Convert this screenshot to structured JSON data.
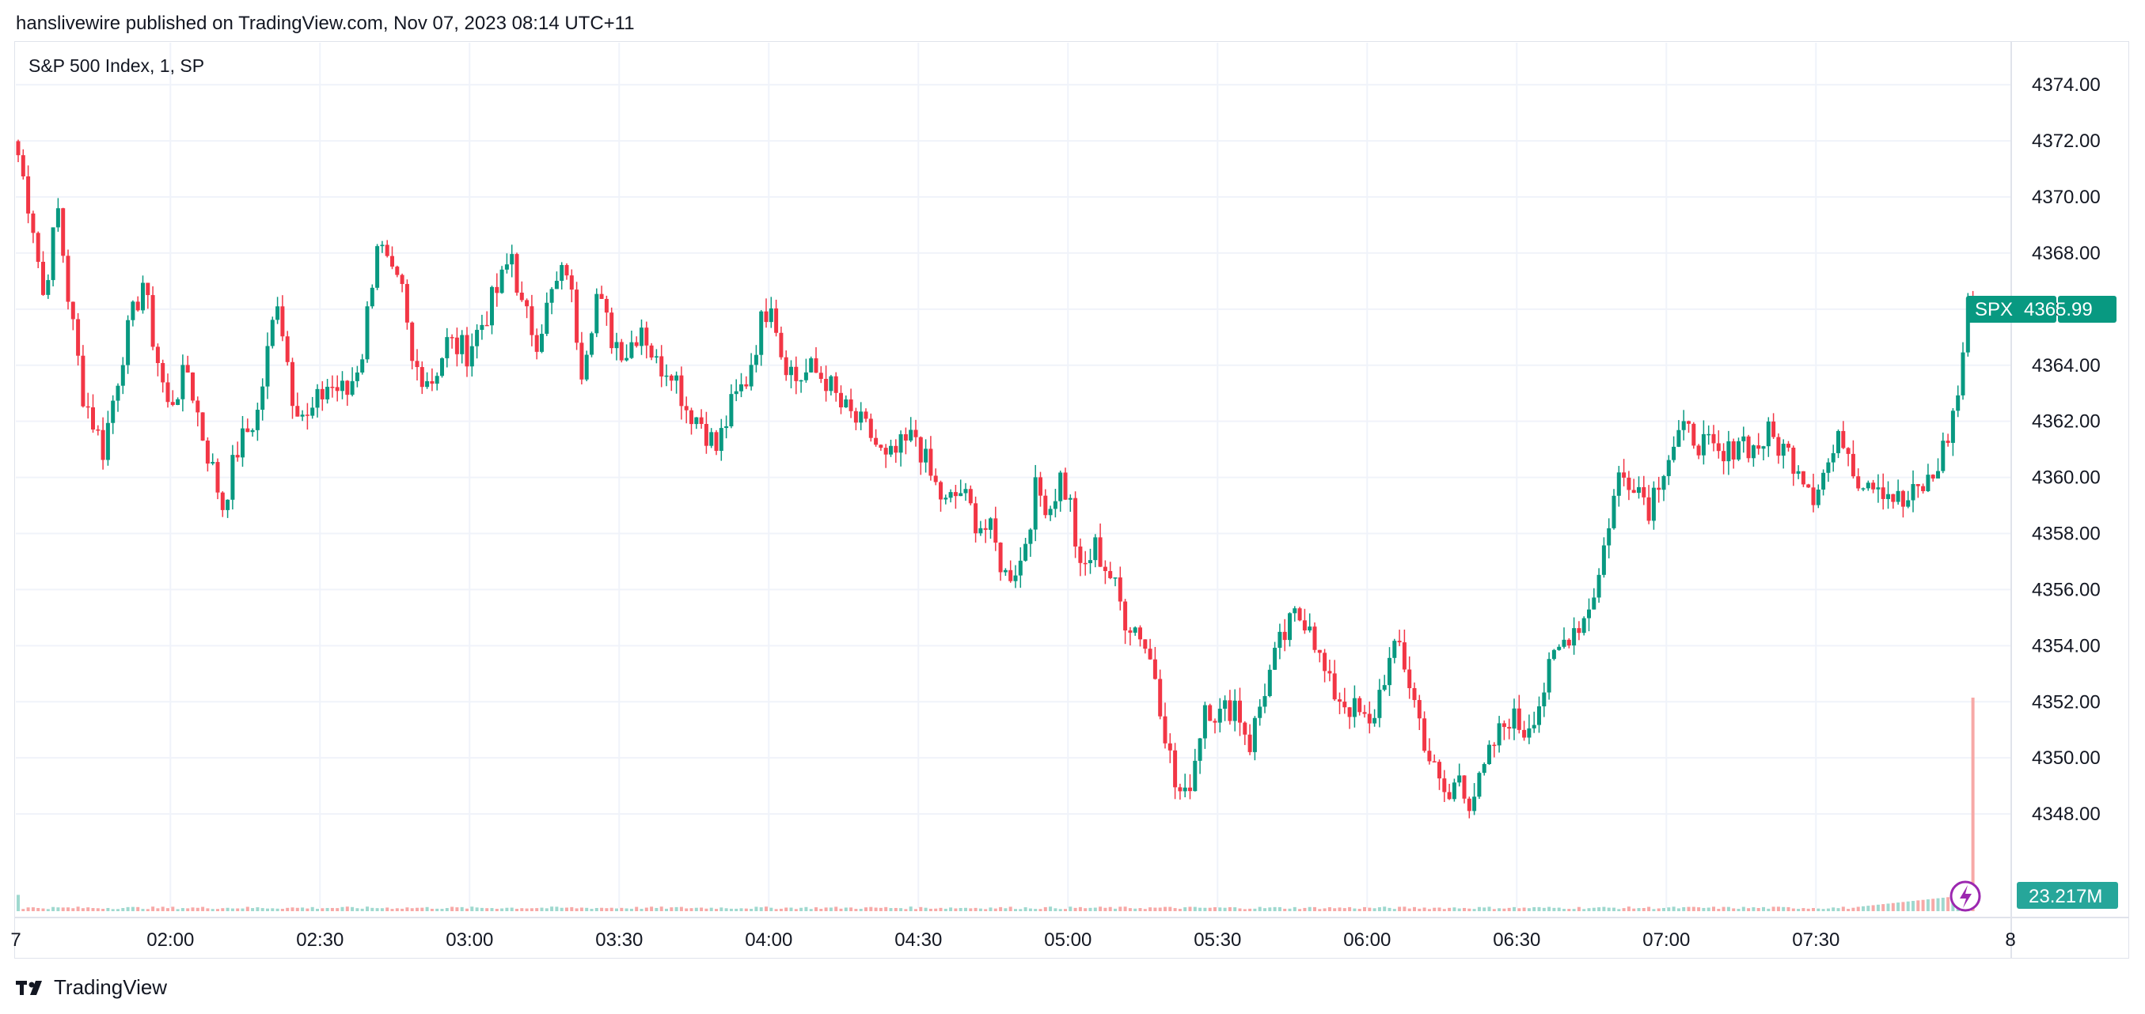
{
  "header": {
    "published": "hanslivewire published on TradingView.com, Nov 07, 2023 08:14 UTC+11"
  },
  "symbol_title": "S&P 500 Index, 1, SP",
  "footer": {
    "brand": "TradingView"
  },
  "price_label": {
    "symbol": "SPX",
    "value": "4365.99"
  },
  "volume_label": {
    "value": "23.217M"
  },
  "colors": {
    "up": "#089981",
    "down": "#f23645",
    "grid": "#f0f3fa",
    "tag": "#089981",
    "lightning": "#9c27b0"
  },
  "icons": {
    "lightning": "lightning-icon",
    "logo": "tradingview-logo-icon"
  },
  "chart_data": {
    "type": "candlestick",
    "title": "S&P 500 Index, 1, SP",
    "interval": "1 minute",
    "ylim": [
      4346.0,
      4375.5
    ],
    "y_ticks": [
      "4374.00",
      "4372.00",
      "4370.00",
      "4368.00",
      "4366.00",
      "4364.00",
      "4362.00",
      "4360.00",
      "4358.00",
      "4356.00",
      "4354.00",
      "4352.00",
      "4350.00",
      "4348.00"
    ],
    "x_ticks": [
      {
        "label": "7",
        "minute": -1
      },
      {
        "label": "02:00",
        "minute": 30
      },
      {
        "label": "02:30",
        "minute": 60
      },
      {
        "label": "03:00",
        "minute": 90
      },
      {
        "label": "03:30",
        "minute": 120
      },
      {
        "label": "04:00",
        "minute": 150
      },
      {
        "label": "04:30",
        "minute": 180
      },
      {
        "label": "05:00",
        "minute": 210
      },
      {
        "label": "05:30",
        "minute": 240
      },
      {
        "label": "06:00",
        "minute": 270
      },
      {
        "label": "06:30",
        "minute": 300
      },
      {
        "label": "07:00",
        "minute": 330
      },
      {
        "label": "07:30",
        "minute": 360
      },
      {
        "label": "8",
        "minute": 399
      }
    ],
    "x_start": "01:30",
    "grid": true,
    "last_price": 4365.99,
    "last_volume": "23.217M",
    "close_path": [
      [
        0,
        4371.5
      ],
      [
        3,
        4369.0
      ],
      [
        5,
        4366.5
      ],
      [
        8,
        4369.5
      ],
      [
        10,
        4366.5
      ],
      [
        13,
        4363.0
      ],
      [
        17,
        4361.0
      ],
      [
        21,
        4364.5
      ],
      [
        25,
        4367.0
      ],
      [
        27,
        4365.0
      ],
      [
        30,
        4362.5
      ],
      [
        34,
        4363.8
      ],
      [
        37,
        4361.5
      ],
      [
        41,
        4359.0
      ],
      [
        44,
        4361.0
      ],
      [
        48,
        4362.3
      ],
      [
        52,
        4366.5
      ],
      [
        55,
        4363.0
      ],
      [
        58,
        4362.0
      ],
      [
        62,
        4363.3
      ],
      [
        66,
        4363.0
      ],
      [
        69,
        4364.5
      ],
      [
        72,
        4368.5
      ],
      [
        75,
        4367.0
      ],
      [
        77,
        4366.5
      ],
      [
        79,
        4364.0
      ],
      [
        83,
        4363.5
      ],
      [
        86,
        4364.8
      ],
      [
        90,
        4364.5
      ],
      [
        93,
        4365.5
      ],
      [
        97,
        4367.0
      ],
      [
        99,
        4368.0
      ],
      [
        101,
        4366.0
      ],
      [
        104,
        4365.0
      ],
      [
        107,
        4366.5
      ],
      [
        110,
        4367.5
      ],
      [
        113,
        4364.0
      ],
      [
        116,
        4366.5
      ],
      [
        119,
        4365.0
      ],
      [
        122,
        4364.5
      ],
      [
        125,
        4365.5
      ],
      [
        128,
        4364.0
      ],
      [
        131,
        4364.0
      ],
      [
        134,
        4362.5
      ],
      [
        137,
        4362.0
      ],
      [
        140,
        4361.0
      ],
      [
        143,
        4362.5
      ],
      [
        146,
        4363.5
      ],
      [
        149,
        4365.5
      ],
      [
        151,
        4366.5
      ],
      [
        153,
        4364.5
      ],
      [
        156,
        4363.5
      ],
      [
        159,
        4363.8
      ],
      [
        162,
        4363.5
      ],
      [
        165,
        4362.5
      ],
      [
        168,
        4362.0
      ],
      [
        171,
        4361.5
      ],
      [
        174,
        4360.5
      ],
      [
        177,
        4361.0
      ],
      [
        180,
        4361.5
      ],
      [
        183,
        4360.0
      ],
      [
        186,
        4359.0
      ],
      [
        189,
        4359.5
      ],
      [
        192,
        4358.5
      ],
      [
        195,
        4358.0
      ],
      [
        198,
        4356.5
      ],
      [
        201,
        4357.0
      ],
      [
        204,
        4359.5
      ],
      [
        207,
        4359.0
      ],
      [
        209,
        4360.0
      ],
      [
        211,
        4359.0
      ],
      [
        213,
        4356.5
      ],
      [
        216,
        4357.5
      ],
      [
        219,
        4356.5
      ],
      [
        222,
        4355.0
      ],
      [
        225,
        4354.5
      ],
      [
        228,
        4353.0
      ],
      [
        230,
        4351.0
      ],
      [
        232,
        4349.0
      ],
      [
        234,
        4348.5
      ],
      [
        236,
        4350.0
      ],
      [
        238,
        4352.0
      ],
      [
        241,
        4351.5
      ],
      [
        244,
        4352.0
      ],
      [
        247,
        4350.5
      ],
      [
        250,
        4352.5
      ],
      [
        253,
        4354.0
      ],
      [
        256,
        4355.0
      ],
      [
        259,
        4355.0
      ],
      [
        261,
        4353.5
      ],
      [
        263,
        4352.5
      ],
      [
        266,
        4352.0
      ],
      [
        269,
        4351.5
      ],
      [
        271,
        4351.0
      ],
      [
        274,
        4353.0
      ],
      [
        277,
        4354.0
      ],
      [
        280,
        4352.0
      ],
      [
        283,
        4350.0
      ],
      [
        285,
        4349.0
      ],
      [
        287,
        4348.5
      ],
      [
        289,
        4349.5
      ],
      [
        291,
        4348.5
      ],
      [
        293,
        4349.0
      ],
      [
        296,
        4350.5
      ],
      [
        299,
        4351.5
      ],
      [
        302,
        4351.0
      ],
      [
        305,
        4352.0
      ],
      [
        308,
        4353.5
      ],
      [
        311,
        4354.5
      ],
      [
        314,
        4355.0
      ],
      [
        317,
        4356.5
      ],
      [
        319,
        4358.5
      ],
      [
        321,
        4360.0
      ],
      [
        324,
        4360.0
      ],
      [
        327,
        4359.0
      ],
      [
        330,
        4360.5
      ],
      [
        333,
        4361.5
      ],
      [
        336,
        4361.5
      ],
      [
        339,
        4361.0
      ],
      [
        342,
        4360.5
      ],
      [
        345,
        4361.5
      ],
      [
        348,
        4361.0
      ],
      [
        351,
        4361.5
      ],
      [
        354,
        4361.0
      ],
      [
        357,
        4360.5
      ],
      [
        360,
        4359.5
      ],
      [
        363,
        4360.5
      ],
      [
        366,
        4361.5
      ],
      [
        369,
        4360.0
      ],
      [
        372,
        4360.0
      ],
      [
        375,
        4359.5
      ],
      [
        378,
        4359.0
      ],
      [
        381,
        4359.5
      ],
      [
        384,
        4360.0
      ],
      [
        387,
        4361.5
      ],
      [
        389,
        4363.0
      ],
      [
        391,
        4366.0
      ],
      [
        392,
        4365.99
      ]
    ],
    "volume": {
      "baseline_level": 0.12,
      "spikes": [
        {
          "minute": 0,
          "level": 0.45,
          "direction": "up"
        },
        {
          "minute": 392,
          "level": 1.0,
          "direction": "down"
        }
      ]
    }
  }
}
